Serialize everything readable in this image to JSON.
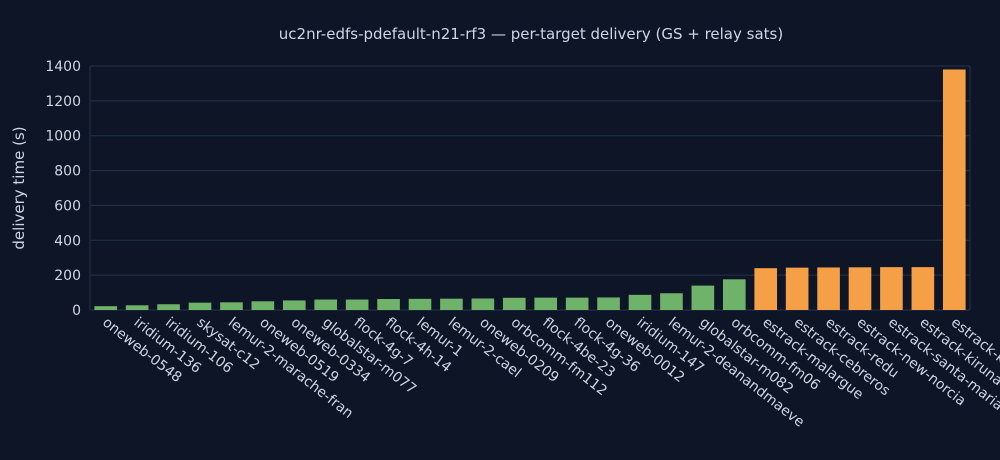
{
  "chart_data": {
    "type": "bar",
    "title": "uc2nr-edfs-pdefault-n21-rf3 — per-target delivery (GS + relay sats)",
    "xlabel": "",
    "ylabel": "delivery time (s)",
    "ylim": [
      0,
      1400
    ],
    "yticks": [
      0,
      200,
      400,
      600,
      800,
      1000,
      1200,
      1400
    ],
    "grid": true,
    "colors": {
      "relay_sat": "#6fb36a",
      "ground_station": "#f5a047",
      "background": "#0d1526",
      "text": "#cfd6e2",
      "grid": "#25324a"
    },
    "categories": [
      "oneweb-0548",
      "iridium-136",
      "iridium-106",
      "skysat-c12",
      "lemur-2-marache-fran",
      "oneweb-0519",
      "oneweb-0334",
      "globalstar-m077",
      "flock-4g-7",
      "flock-4h-14",
      "lemur-1",
      "lemur-2-cael",
      "oneweb-0209",
      "orbcomm-fm112",
      "flock-4be-23",
      "flock-4g-36",
      "oneweb-0012",
      "iridium-147",
      "lemur-2-deanandmaeve",
      "globalstar-m082",
      "orbcomm-fm06",
      "estrack-malargue",
      "estrack-cebreros",
      "estrack-redu",
      "estrack-new-norcia",
      "estrack-santa-maria",
      "estrack-kiruna",
      "estrack-k"
    ],
    "values": [
      22,
      27,
      33,
      42,
      44,
      50,
      55,
      60,
      60,
      63,
      64,
      65,
      66,
      70,
      71,
      71,
      72,
      87,
      96,
      140,
      176,
      240,
      243,
      244,
      245,
      246,
      246,
      1380
    ],
    "kinds": [
      "relay_sat",
      "relay_sat",
      "relay_sat",
      "relay_sat",
      "relay_sat",
      "relay_sat",
      "relay_sat",
      "relay_sat",
      "relay_sat",
      "relay_sat",
      "relay_sat",
      "relay_sat",
      "relay_sat",
      "relay_sat",
      "relay_sat",
      "relay_sat",
      "relay_sat",
      "relay_sat",
      "relay_sat",
      "relay_sat",
      "relay_sat",
      "ground_station",
      "ground_station",
      "ground_station",
      "ground_station",
      "ground_station",
      "ground_station",
      "ground_station"
    ]
  }
}
